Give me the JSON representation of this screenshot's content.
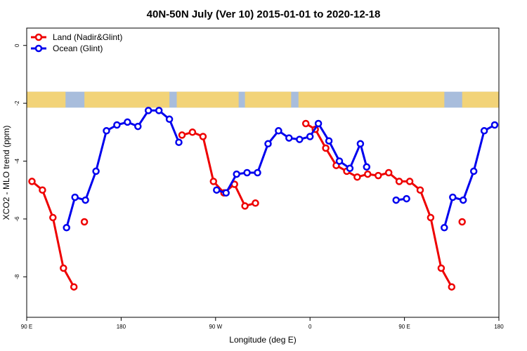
{
  "chart_data": {
    "type": "line",
    "title": "40N-50N July (Ver 10)   2015-01-01 to 2020-12-18",
    "xlabel": "Longitude (deg E)",
    "ylabel": "XCO2 - MLO trend (ppm)",
    "x_ticks": [
      {
        "value": 90,
        "label": "90 E"
      },
      {
        "value": 180,
        "label": "180"
      },
      {
        "value": 270,
        "label": "90 W"
      },
      {
        "value": 360,
        "label": "0"
      },
      {
        "value": 450,
        "label": "90 E"
      },
      {
        "value": 540,
        "label": "180"
      }
    ],
    "y_ticks": [
      {
        "value": 0,
        "label": "0"
      },
      {
        "value": -2,
        "label": "-2"
      },
      {
        "value": -4,
        "label": "-4"
      },
      {
        "value": -6,
        "label": "-6"
      },
      {
        "value": -8,
        "label": "-8"
      }
    ],
    "xlim": [
      90,
      540
    ],
    "ylim": [
      -9.4,
      0.6
    ],
    "grid": false,
    "legend_position": "top-left",
    "series": [
      {
        "name": "Land (Nadir&Glint)",
        "color": "#ee0000",
        "segments": [
          [
            [
              95,
              -4.7
            ],
            [
              105,
              -5.0
            ],
            [
              115,
              -5.95
            ],
            [
              125,
              -7.7
            ],
            [
              135,
              -8.35
            ]
          ],
          [
            [
              145,
              -6.1
            ]
          ],
          [
            [
              238,
              -3.1
            ],
            [
              248,
              -3.0
            ],
            [
              258,
              -3.15
            ],
            [
              268,
              -4.7
            ],
            [
              278,
              -5.1
            ],
            [
              288,
              -4.8
            ],
            [
              298,
              -5.55
            ],
            [
              308,
              -5.45
            ]
          ],
          [
            [
              356,
              -2.7
            ],
            [
              365,
              -2.9
            ],
            [
              375,
              -3.55
            ],
            [
              385,
              -4.15
            ],
            [
              395,
              -4.35
            ],
            [
              405,
              -4.55
            ],
            [
              415,
              -4.45
            ],
            [
              425,
              -4.5
            ],
            [
              435,
              -4.4
            ],
            [
              445,
              -4.7
            ],
            [
              455,
              -4.7
            ],
            [
              465,
              -5.0
            ],
            [
              475,
              -5.95
            ],
            [
              485,
              -7.7
            ],
            [
              495,
              -8.35
            ]
          ],
          [
            [
              505,
              -6.1
            ]
          ]
        ]
      },
      {
        "name": "Ocean (Glint)",
        "color": "#0000ee",
        "segments": [
          [
            [
              128,
              -6.3
            ],
            [
              136,
              -5.25
            ],
            [
              146,
              -5.35
            ],
            [
              156,
              -4.35
            ],
            [
              166,
              -2.95
            ],
            [
              176,
              -2.75
            ],
            [
              186,
              -2.65
            ],
            [
              196,
              -2.8
            ],
            [
              206,
              -2.25
            ],
            [
              216,
              -2.25
            ],
            [
              226,
              -2.55
            ],
            [
              235,
              -3.35
            ]
          ],
          [
            [
              271,
              -5.0
            ],
            [
              280,
              -5.1
            ],
            [
              290,
              -4.45
            ],
            [
              300,
              -4.4
            ],
            [
              310,
              -4.4
            ],
            [
              320,
              -3.4
            ],
            [
              330,
              -2.95
            ],
            [
              340,
              -3.2
            ],
            [
              350,
              -3.25
            ],
            [
              360,
              -3.15
            ],
            [
              368,
              -2.7
            ],
            [
              378,
              -3.3
            ],
            [
              388,
              -4.0
            ],
            [
              398,
              -4.25
            ],
            [
              408,
              -3.4
            ],
            [
              414,
              -4.2
            ]
          ],
          [
            [
              442,
              -5.35
            ],
            [
              452,
              -5.3
            ]
          ],
          [
            [
              488,
              -6.3
            ],
            [
              496,
              -5.25
            ],
            [
              506,
              -5.35
            ],
            [
              516,
              -4.35
            ],
            [
              526,
              -2.95
            ],
            [
              536,
              -2.75
            ]
          ]
        ]
      }
    ]
  },
  "legend": {
    "land_label": "Land (Nadir&Glint)",
    "ocean_label": "Ocean (Glint)"
  },
  "map_strip": {
    "ocean_color": "#a8bddc",
    "land_color": "#f2d378",
    "y_range": [
      -1.6,
      -2.15
    ],
    "land_spans": [
      [
        90,
        127
      ],
      [
        145,
        226
      ],
      [
        233,
        292
      ],
      [
        298,
        342
      ],
      [
        349,
        488
      ],
      [
        505,
        540
      ]
    ]
  }
}
